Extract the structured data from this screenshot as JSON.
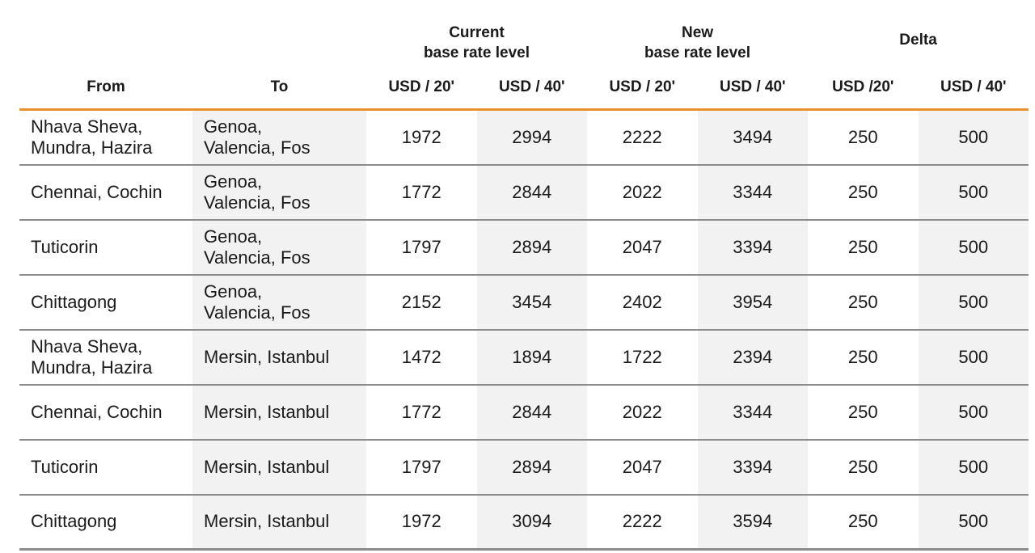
{
  "header": {
    "groups": {
      "current": [
        "Current",
        "base rate level"
      ],
      "new": [
        "New",
        "base rate level"
      ],
      "delta": "Delta"
    },
    "columns": {
      "from": "From",
      "to": "To",
      "current_20": "USD / 20'",
      "current_40": "USD / 40'",
      "new_20": "USD / 20'",
      "new_40": "USD / 40'",
      "delta_20": "USD /20'",
      "delta_40": "USD / 40'"
    }
  },
  "rows": [
    {
      "from": [
        "Nhava Sheva,",
        "Mundra, Hazira"
      ],
      "to": [
        "Genoa,",
        "Valencia, Fos"
      ],
      "current_20": "1972",
      "current_40": "2994",
      "new_20": "2222",
      "new_40": "3494",
      "delta_20": "250",
      "delta_40": "500"
    },
    {
      "from": [
        "Chennai, Cochin"
      ],
      "to": [
        "Genoa,",
        "Valencia, Fos"
      ],
      "current_20": "1772",
      "current_40": "2844",
      "new_20": "2022",
      "new_40": "3344",
      "delta_20": "250",
      "delta_40": "500"
    },
    {
      "from": [
        "Tuticorin"
      ],
      "to": [
        "Genoa,",
        "Valencia, Fos"
      ],
      "current_20": "1797",
      "current_40": "2894",
      "new_20": "2047",
      "new_40": "3394",
      "delta_20": "250",
      "delta_40": "500"
    },
    {
      "from": [
        "Chittagong"
      ],
      "to": [
        "Genoa,",
        "Valencia, Fos"
      ],
      "current_20": "2152",
      "current_40": "3454",
      "new_20": "2402",
      "new_40": "3954",
      "delta_20": "250",
      "delta_40": "500"
    },
    {
      "from": [
        "Nhava Sheva,",
        "Mundra, Hazira"
      ],
      "to": [
        "Mersin, Istanbul"
      ],
      "current_20": "1472",
      "current_40": "1894",
      "new_20": "1722",
      "new_40": "2394",
      "delta_20": "250",
      "delta_40": "500"
    },
    {
      "from": [
        "Chennai, Cochin"
      ],
      "to": [
        "Mersin, Istanbul"
      ],
      "current_20": "1772",
      "current_40": "2844",
      "new_20": "2022",
      "new_40": "3344",
      "delta_20": "250",
      "delta_40": "500"
    },
    {
      "from": [
        "Tuticorin"
      ],
      "to": [
        "Mersin, Istanbul"
      ],
      "current_20": "1797",
      "current_40": "2894",
      "new_20": "2047",
      "new_40": "3394",
      "delta_20": "250",
      "delta_40": "500"
    },
    {
      "from": [
        "Chittagong"
      ],
      "to": [
        "Mersin, Istanbul"
      ],
      "current_20": "1972",
      "current_40": "3094",
      "new_20": "2222",
      "new_40": "3594",
      "delta_20": "250",
      "delta_40": "500"
    }
  ]
}
